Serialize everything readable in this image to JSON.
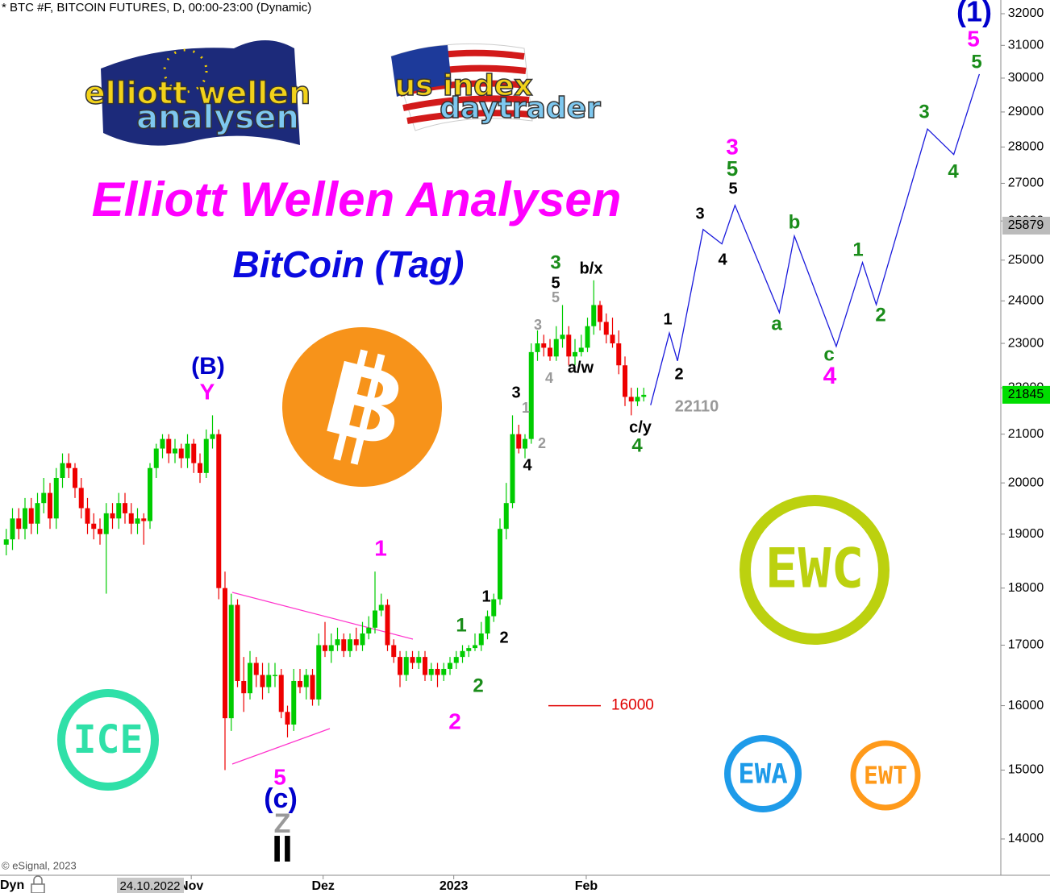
{
  "chart_data": {
    "type": "candlestick",
    "header": "* BTC #F, BITCOIN FUTURES, D, 00:00-23:00 (Dynamic)",
    "title": "Elliott Wellen Analysen",
    "subtitle": "BitCoin (Tag)",
    "copyright": "© eSignal, 2023",
    "axis_mode": "Dyn",
    "cursor_date": "24.10.2022",
    "log_scale": true,
    "grid": false,
    "up_color": "#00cc00",
    "down_color": "#ee0000",
    "xlim": [
      -1,
      159
    ],
    "xticks": [
      {
        "value": 29.6,
        "label": "Nov"
      },
      {
        "value": 50.7,
        "label": "Dez"
      },
      {
        "value": 71.6,
        "label": "2023"
      },
      {
        "value": 92.8,
        "label": "Feb"
      }
    ],
    "ylim": [
      13511,
      32442
    ],
    "yticks": [
      14000,
      15000,
      16000,
      17000,
      18000,
      19000,
      20000,
      21000,
      22000,
      23000,
      24000,
      25000,
      26000,
      27000,
      28000,
      29000,
      30000,
      31000,
      32000
    ],
    "ohlc": [
      [
        18800,
        19100,
        18600,
        18900
      ],
      [
        18900,
        19500,
        18700,
        19300
      ],
      [
        19300,
        19500,
        18900,
        19100
      ],
      [
        19100,
        19700,
        18900,
        19500
      ],
      [
        19500,
        19700,
        19000,
        19200
      ],
      [
        19200,
        19800,
        19000,
        19600
      ],
      [
        19600,
        20100,
        19400,
        19800
      ],
      [
        19800,
        20000,
        19100,
        19300
      ],
      [
        19300,
        20300,
        19100,
        20100
      ],
      [
        20100,
        20600,
        19900,
        20400
      ],
      [
        20400,
        20600,
        20100,
        20300
      ],
      [
        20300,
        20400,
        19700,
        19900
      ],
      [
        19900,
        20100,
        19300,
        19500
      ],
      [
        19500,
        19700,
        19000,
        19200
      ],
      [
        19200,
        19400,
        18900,
        19100
      ],
      [
        19100,
        19300,
        18800,
        19000
      ],
      [
        19000,
        19600,
        17900,
        19400
      ],
      [
        19400,
        19600,
        19100,
        19300
      ],
      [
        19300,
        19800,
        19100,
        19600
      ],
      [
        19600,
        19800,
        19200,
        19400
      ],
      [
        19400,
        19600,
        19000,
        19200
      ],
      [
        19200,
        19500,
        19000,
        19300
      ],
      [
        19300,
        19400,
        18800,
        19250
      ],
      [
        19250,
        20400,
        19100,
        20300
      ],
      [
        20300,
        20800,
        20100,
        20700
      ],
      [
        20700,
        21000,
        20500,
        20900
      ],
      [
        20900,
        21000,
        20400,
        20600
      ],
      [
        20600,
        20900,
        20400,
        20700
      ],
      [
        20700,
        20800,
        20300,
        20500
      ],
      [
        20500,
        21000,
        20300,
        20800
      ],
      [
        20800,
        20900,
        20200,
        20400
      ],
      [
        20400,
        20600,
        20000,
        20200
      ],
      [
        20200,
        21100,
        20100,
        20900
      ],
      [
        20900,
        21400,
        20700,
        21000
      ],
      [
        21000,
        21100,
        17800,
        18000
      ],
      [
        18000,
        18300,
        15000,
        15800
      ],
      [
        15800,
        17900,
        15600,
        17700
      ],
      [
        17700,
        17800,
        16300,
        16400
      ],
      [
        16400,
        16800,
        15900,
        16200
      ],
      [
        16200,
        16900,
        16100,
        16700
      ],
      [
        16700,
        16800,
        16300,
        16500
      ],
      [
        16500,
        16700,
        16100,
        16300
      ],
      [
        16300,
        16700,
        16200,
        16500
      ],
      [
        16500,
        16700,
        16300,
        16500
      ],
      [
        16500,
        16600,
        15800,
        15900
      ],
      [
        15900,
        16000,
        15500,
        15700
      ],
      [
        15700,
        16600,
        15600,
        16400
      ],
      [
        16400,
        16600,
        16200,
        16300
      ],
      [
        16300,
        16600,
        16100,
        16500
      ],
      [
        16500,
        16600,
        16000,
        16100
      ],
      [
        16100,
        17200,
        16000,
        17000
      ],
      [
        17000,
        17400,
        16800,
        16900
      ],
      [
        16900,
        17200,
        16700,
        17000
      ],
      [
        17000,
        17300,
        16900,
        17100
      ],
      [
        17100,
        17200,
        16800,
        16900
      ],
      [
        16900,
        17200,
        16800,
        17100
      ],
      [
        17100,
        17300,
        16900,
        17000
      ],
      [
        17000,
        17400,
        16900,
        17200
      ],
      [
        17200,
        17500,
        17100,
        17300
      ],
      [
        17300,
        18300,
        17200,
        17600
      ],
      [
        17600,
        17900,
        17500,
        17700
      ],
      [
        17700,
        17800,
        16900,
        17000
      ],
      [
        17000,
        17100,
        16700,
        16800
      ],
      [
        16800,
        16900,
        16300,
        16500
      ],
      [
        16500,
        16900,
        16400,
        16800
      ],
      [
        16800,
        16900,
        16600,
        16700
      ],
      [
        16700,
        16900,
        16600,
        16800
      ],
      [
        16800,
        16900,
        16400,
        16500
      ],
      [
        16500,
        16700,
        16400,
        16600
      ],
      [
        16600,
        16700,
        16300,
        16500
      ],
      [
        16500,
        16700,
        16400,
        16600
      ],
      [
        16600,
        16800,
        16500,
        16700
      ],
      [
        16700,
        16900,
        16600,
        16800
      ],
      [
        16800,
        17000,
        16700,
        16900
      ],
      [
        16900,
        17000,
        16800,
        16950
      ],
      [
        16950,
        17200,
        16900,
        17000
      ],
      [
        17000,
        17400,
        16900,
        17200
      ],
      [
        17200,
        17600,
        17100,
        17500
      ],
      [
        17500,
        17900,
        17400,
        17800
      ],
      [
        17800,
        19300,
        17700,
        19100
      ],
      [
        19100,
        20000,
        18900,
        19600
      ],
      [
        19600,
        21400,
        19500,
        21000
      ],
      [
        21000,
        21200,
        20600,
        20700
      ],
      [
        20700,
        21000,
        20500,
        20900
      ],
      [
        20900,
        23000,
        20800,
        22800
      ],
      [
        22800,
        23300,
        22600,
        23000
      ],
      [
        23000,
        23200,
        22700,
        22900
      ],
      [
        22900,
        23100,
        22600,
        22700
      ],
      [
        22700,
        23400,
        22600,
        23100
      ],
      [
        23100,
        23900,
        22900,
        23200
      ],
      [
        23200,
        23400,
        22500,
        22700
      ],
      [
        22700,
        23100,
        22500,
        22800
      ],
      [
        22800,
        23200,
        22700,
        22900
      ],
      [
        22900,
        23600,
        22800,
        23400
      ],
      [
        23400,
        24500,
        23200,
        23900
      ],
      [
        23900,
        24000,
        23300,
        23500
      ],
      [
        23500,
        23700,
        23000,
        23200
      ],
      [
        23200,
        23600,
        22900,
        23000
      ],
      [
        23000,
        23300,
        22300,
        22500
      ],
      [
        22500,
        22700,
        21600,
        21800
      ],
      [
        21800,
        22000,
        21400,
        21700
      ],
      [
        21700,
        22000,
        21600,
        21800
      ],
      [
        21800,
        22000,
        21700,
        21845
      ]
    ],
    "projection": {
      "color": "#1a1adc",
      "x": [
        103.1,
        106.1,
        107.4,
        111.5,
        114.5,
        116.6,
        123.7,
        126.1,
        132.8,
        137.0,
        139.2,
        147.4,
        151.6,
        155.7
      ],
      "values": [
        21620,
        23240,
        22600,
        25780,
        25410,
        26410,
        23720,
        25610,
        22930,
        24940,
        23910,
        28510,
        27790,
        30120
      ]
    },
    "level_line": {
      "value": 16000,
      "color": "#e00000"
    },
    "price_tags": [
      {
        "value": 25879,
        "color": "#bbbbbb"
      },
      {
        "value": 21845,
        "color": "#00dd00"
      }
    ],
    "annotations": [
      {
        "text": "(1)",
        "color": "#0000cc"
      },
      {
        "text": "5",
        "color": "#ff00ff"
      },
      {
        "text": "5",
        "color": "#1a8c1a"
      },
      {
        "text": "3",
        "color": "#ff00ff"
      },
      {
        "text": "5",
        "color": "#1a8c1a"
      },
      {
        "text": "5",
        "color": "#000000"
      },
      {
        "text": "3",
        "color": "#000000"
      },
      {
        "text": "4",
        "color": "#000000"
      },
      {
        "text": "1",
        "color": "#000000"
      },
      {
        "text": "2",
        "color": "#000000"
      },
      {
        "text": "b",
        "color": "#1a8c1a"
      },
      {
        "text": "a",
        "color": "#1a8c1a"
      },
      {
        "text": "c",
        "color": "#1a8c1a"
      },
      {
        "text": "4",
        "color": "#ff00ff"
      },
      {
        "text": "1",
        "color": "#1a8c1a"
      },
      {
        "text": "2",
        "color": "#1a8c1a"
      },
      {
        "text": "3",
        "color": "#1a8c1a"
      },
      {
        "text": "4",
        "color": "#1a8c1a"
      },
      {
        "text": "22110",
        "color": "#999999"
      },
      {
        "text": "3",
        "color": "#1a8c1a"
      },
      {
        "text": "5",
        "color": "#000000"
      },
      {
        "text": "5",
        "color": "#999999"
      },
      {
        "text": "3",
        "color": "#999999"
      },
      {
        "text": "4",
        "color": "#999999"
      },
      {
        "text": "b/x",
        "color": "#000000"
      },
      {
        "text": "a/w",
        "color": "#000000"
      },
      {
        "text": "c/y",
        "color": "#000000"
      },
      {
        "text": "4",
        "color": "#1a8c1a"
      },
      {
        "text": "3",
        "color": "#000000"
      },
      {
        "text": "1",
        "color": "#999999"
      },
      {
        "text": "2",
        "color": "#999999"
      },
      {
        "text": "4",
        "color": "#000000"
      },
      {
        "text": "1",
        "color": "#000000"
      },
      {
        "text": "2",
        "color": "#000000"
      },
      {
        "text": "1",
        "color": "#1a8c1a"
      },
      {
        "text": "2",
        "color": "#1a8c1a"
      },
      {
        "text": "2",
        "color": "#ff00ff"
      },
      {
        "text": "1",
        "color": "#ff00ff"
      },
      {
        "text": "(B)",
        "color": "#0000cc"
      },
      {
        "text": "Y",
        "color": "#ff00ff"
      },
      {
        "text": "5",
        "color": "#ff00ff"
      },
      {
        "text": "(c)",
        "color": "#0000cc"
      },
      {
        "text": "Z",
        "color": "#999999"
      },
      {
        "text": "II",
        "color": "#000000"
      }
    ],
    "logos": {
      "ewa_top": "elliott wellen",
      "ewa_bottom": "analysen",
      "us_top": "us index",
      "us_bottom": "daytrader",
      "bitcoin": "B",
      "ewc": "EWC",
      "ice": "ICE",
      "ewa": "EWA",
      "ewt": "EWT"
    }
  }
}
